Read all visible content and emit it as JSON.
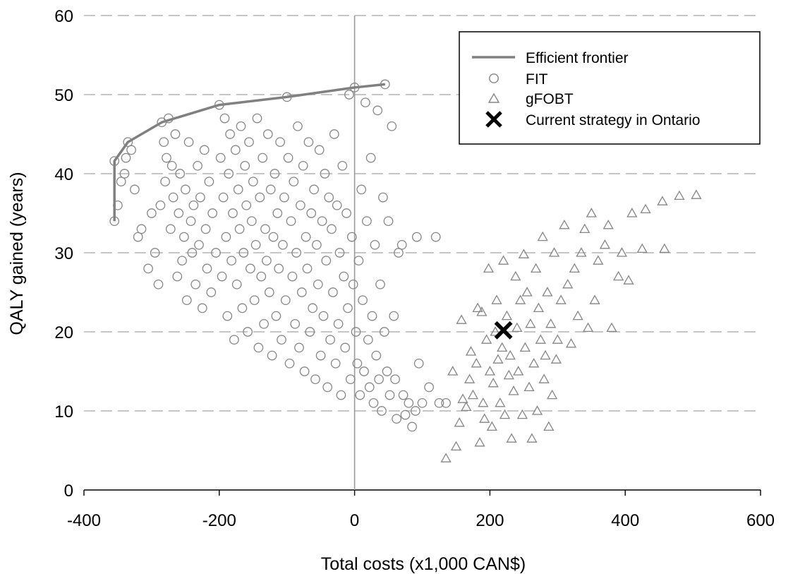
{
  "chart_data": {
    "type": "scatter",
    "title": "",
    "xlabel": "Total costs (x1,000 CAN$)",
    "ylabel": "QALY gained (years)",
    "xlim": [
      -400,
      600
    ],
    "ylim": [
      0,
      60
    ],
    "xticks": [
      -400,
      -200,
      0,
      200,
      400,
      600
    ],
    "yticks": [
      0,
      10,
      20,
      30,
      40,
      50,
      60
    ],
    "grid": "horizontal dashed",
    "legend_position": "top-right",
    "colors": {
      "series": "#858585",
      "frontier": "#808080",
      "current": "#000000"
    },
    "series": [
      {
        "name": "Efficient frontier",
        "marker": "line",
        "points": [
          [
            -355,
            34
          ],
          [
            -355,
            41.6
          ],
          [
            -335,
            44
          ],
          [
            -285,
            46.5
          ],
          [
            -200,
            48.7
          ],
          [
            -100,
            49.7
          ],
          [
            0,
            50.9
          ],
          [
            45,
            51.3
          ]
        ]
      },
      {
        "name": "FIT",
        "marker": "circle",
        "points": [
          [
            -355,
            34
          ],
          [
            -355,
            41.6
          ],
          [
            -350,
            36
          ],
          [
            -345,
            39
          ],
          [
            -340,
            40
          ],
          [
            -338,
            42
          ],
          [
            -335,
            44
          ],
          [
            -330,
            43
          ],
          [
            -325,
            38
          ],
          [
            -320,
            32
          ],
          [
            -315,
            33
          ],
          [
            -305,
            28
          ],
          [
            -300,
            35
          ],
          [
            -295,
            30
          ],
          [
            -290,
            26
          ],
          [
            -287,
            36
          ],
          [
            -285,
            46.5
          ],
          [
            -282,
            44
          ],
          [
            -280,
            39
          ],
          [
            -278,
            42
          ],
          [
            -275,
            47
          ],
          [
            -272,
            33
          ],
          [
            -270,
            41
          ],
          [
            -268,
            37
          ],
          [
            -265,
            45
          ],
          [
            -262,
            27
          ],
          [
            -260,
            35
          ],
          [
            -258,
            40
          ],
          [
            -255,
            29
          ],
          [
            -252,
            32
          ],
          [
            -250,
            38
          ],
          [
            -248,
            24
          ],
          [
            -245,
            44
          ],
          [
            -242,
            34
          ],
          [
            -240,
            30
          ],
          [
            -238,
            36
          ],
          [
            -235,
            26
          ],
          [
            -232,
            41
          ],
          [
            -230,
            31
          ],
          [
            -228,
            37
          ],
          [
            -225,
            23
          ],
          [
            -222,
            43
          ],
          [
            -220,
            33
          ],
          [
            -218,
            28
          ],
          [
            -215,
            39
          ],
          [
            -212,
            25
          ],
          [
            -210,
            35
          ],
          [
            -205,
            30
          ],
          [
            -200,
            48.7
          ],
          [
            -198,
            42
          ],
          [
            -196,
            27
          ],
          [
            -194,
            37
          ],
          [
            -192,
            47
          ],
          [
            -190,
            32
          ],
          [
            -188,
            22
          ],
          [
            -186,
            40
          ],
          [
            -184,
            45
          ],
          [
            -182,
            29
          ],
          [
            -180,
            35
          ],
          [
            -178,
            19
          ],
          [
            -176,
            43
          ],
          [
            -174,
            26
          ],
          [
            -172,
            38
          ],
          [
            -170,
            33
          ],
          [
            -168,
            46
          ],
          [
            -166,
            23
          ],
          [
            -164,
            30
          ],
          [
            -162,
            41
          ],
          [
            -160,
            36
          ],
          [
            -158,
            20
          ],
          [
            -156,
            44
          ],
          [
            -154,
            28
          ],
          [
            -152,
            34
          ],
          [
            -150,
            39
          ],
          [
            -148,
            24
          ],
          [
            -146,
            31
          ],
          [
            -144,
            47
          ],
          [
            -142,
            18
          ],
          [
            -140,
            37
          ],
          [
            -138,
            27
          ],
          [
            -136,
            42
          ],
          [
            -134,
            21
          ],
          [
            -132,
            33
          ],
          [
            -130,
            29
          ],
          [
            -128,
            45
          ],
          [
            -126,
            25
          ],
          [
            -124,
            38
          ],
          [
            -122,
            17
          ],
          [
            -120,
            32
          ],
          [
            -118,
            40
          ],
          [
            -116,
            22
          ],
          [
            -114,
            35
          ],
          [
            -112,
            28
          ],
          [
            -110,
            44
          ],
          [
            -108,
            19
          ],
          [
            -106,
            31
          ],
          [
            -104,
            37
          ],
          [
            -102,
            24
          ],
          [
            -100,
            49.7
          ],
          [
            -98,
            42
          ],
          [
            -96,
            16
          ],
          [
            -94,
            34
          ],
          [
            -92,
            27
          ],
          [
            -90,
            39
          ],
          [
            -88,
            21
          ],
          [
            -86,
            30
          ],
          [
            -84,
            46
          ],
          [
            -82,
            18
          ],
          [
            -80,
            36
          ],
          [
            -78,
            25
          ],
          [
            -76,
            41
          ],
          [
            -74,
            15
          ],
          [
            -72,
            32
          ],
          [
            -70,
            28
          ],
          [
            -68,
            44
          ],
          [
            -66,
            20
          ],
          [
            -64,
            35
          ],
          [
            -62,
            23
          ],
          [
            -60,
            38
          ],
          [
            -58,
            14
          ],
          [
            -56,
            31
          ],
          [
            -54,
            26
          ],
          [
            -52,
            43
          ],
          [
            -50,
            17
          ],
          [
            -48,
            34
          ],
          [
            -46,
            22
          ],
          [
            -44,
            40
          ],
          [
            -42,
            29
          ],
          [
            -40,
            13
          ],
          [
            -38,
            37
          ],
          [
            -36,
            19
          ],
          [
            -34,
            33
          ],
          [
            -32,
            25
          ],
          [
            -30,
            45
          ],
          [
            -28,
            16
          ],
          [
            -26,
            36
          ],
          [
            -24,
            21
          ],
          [
            -22,
            30
          ],
          [
            -20,
            12
          ],
          [
            -18,
            41
          ],
          [
            -16,
            27
          ],
          [
            -14,
            18
          ],
          [
            -12,
            35
          ],
          [
            -10,
            23
          ],
          [
            -8,
            50
          ],
          [
            -6,
            14
          ],
          [
            -4,
            32
          ],
          [
            -2,
            26
          ],
          [
            0,
            50.9
          ],
          [
            2,
            20
          ],
          [
            4,
            16
          ],
          [
            6,
            29
          ],
          [
            8,
            12
          ],
          [
            10,
            38
          ],
          [
            12,
            24
          ],
          [
            14,
            15
          ],
          [
            16,
            49
          ],
          [
            18,
            34
          ],
          [
            20,
            19
          ],
          [
            22,
            13
          ],
          [
            24,
            42
          ],
          [
            26,
            22
          ],
          [
            28,
            11
          ],
          [
            30,
            31
          ],
          [
            32,
            17
          ],
          [
            34,
            48
          ],
          [
            36,
            14
          ],
          [
            38,
            26
          ],
          [
            40,
            10
          ],
          [
            42,
            37
          ],
          [
            44,
            20
          ],
          [
            45,
            51.3
          ],
          [
            48,
            15
          ],
          [
            50,
            34
          ],
          [
            52,
            12
          ],
          [
            55,
            46
          ],
          [
            58,
            22
          ],
          [
            60,
            14
          ],
          [
            62,
            9
          ],
          [
            65,
            30
          ],
          [
            70,
            31
          ],
          [
            72,
            12
          ],
          [
            75,
            9.5
          ],
          [
            80,
            11
          ],
          [
            85,
            8
          ],
          [
            90,
            10
          ],
          [
            92,
            32
          ],
          [
            95,
            16
          ],
          [
            100,
            11
          ],
          [
            110,
            13
          ],
          [
            120,
            32
          ],
          [
            125,
            11
          ],
          [
            135,
            11
          ]
        ]
      },
      {
        "name": "gFOBT",
        "marker": "triangle",
        "points": [
          [
            135,
            4
          ],
          [
            145,
            15
          ],
          [
            150,
            5.5
          ],
          [
            155,
            8.5
          ],
          [
            158,
            21.5
          ],
          [
            160,
            11.5
          ],
          [
            165,
            10.5
          ],
          [
            170,
            14
          ],
          [
            172,
            17.5
          ],
          [
            175,
            12
          ],
          [
            180,
            16
          ],
          [
            182,
            23
          ],
          [
            185,
            6
          ],
          [
            188,
            22.5
          ],
          [
            190,
            11
          ],
          [
            192,
            9
          ],
          [
            195,
            19
          ],
          [
            198,
            28
          ],
          [
            200,
            15
          ],
          [
            203,
            8
          ],
          [
            205,
            13.5
          ],
          [
            208,
            20
          ],
          [
            210,
            24
          ],
          [
            212,
            16.5
          ],
          [
            215,
            11
          ],
          [
            218,
            18
          ],
          [
            220,
            29
          ],
          [
            222,
            9.5
          ],
          [
            225,
            22
          ],
          [
            228,
            14.5
          ],
          [
            230,
            17
          ],
          [
            232,
            6.5
          ],
          [
            235,
            12.5
          ],
          [
            238,
            27
          ],
          [
            240,
            20.5
          ],
          [
            242,
            15
          ],
          [
            245,
            24
          ],
          [
            248,
            9.5
          ],
          [
            250,
            29.8
          ],
          [
            252,
            18
          ],
          [
            255,
            25
          ],
          [
            258,
            13
          ],
          [
            260,
            21
          ],
          [
            262,
            6.5
          ],
          [
            265,
            16
          ],
          [
            268,
            28
          ],
          [
            270,
            10
          ],
          [
            272,
            23
          ],
          [
            275,
            19
          ],
          [
            278,
            32
          ],
          [
            280,
            14
          ],
          [
            282,
            17
          ],
          [
            285,
            25
          ],
          [
            287,
            8
          ],
          [
            290,
            21
          ],
          [
            292,
            12
          ],
          [
            295,
            30
          ],
          [
            298,
            16.5
          ],
          [
            300,
            19
          ],
          [
            305,
            24
          ],
          [
            310,
            33.5
          ],
          [
            315,
            26
          ],
          [
            320,
            18.5
          ],
          [
            325,
            28
          ],
          [
            330,
            22
          ],
          [
            335,
            30
          ],
          [
            340,
            33
          ],
          [
            345,
            20.5
          ],
          [
            350,
            35
          ],
          [
            355,
            24
          ],
          [
            360,
            29
          ],
          [
            370,
            31
          ],
          [
            375,
            33.5
          ],
          [
            380,
            20.5
          ],
          [
            390,
            27
          ],
          [
            395,
            30
          ],
          [
            405,
            26.5
          ],
          [
            410,
            35
          ],
          [
            425,
            30.5
          ],
          [
            430,
            35.5
          ],
          [
            455,
            36.5
          ],
          [
            458,
            30.5
          ],
          [
            480,
            37.2
          ],
          [
            505,
            37.3
          ]
        ]
      },
      {
        "name": "Current strategy in Ontario",
        "marker": "cross",
        "points": [
          [
            220,
            20.2
          ]
        ]
      }
    ]
  }
}
